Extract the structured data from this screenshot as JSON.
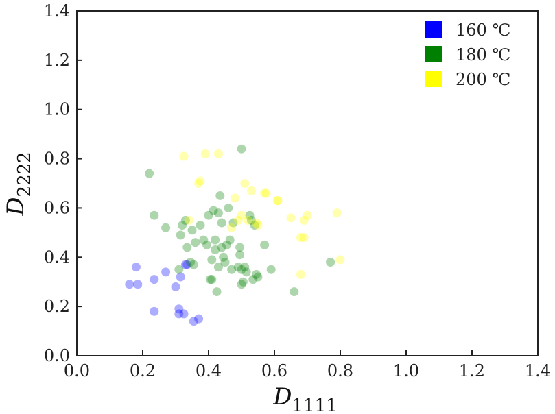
{
  "chart_data": {
    "type": "scatter",
    "xlabel": {
      "main": "D",
      "sub": "1111"
    },
    "ylabel": {
      "main": "D",
      "sub": "2222"
    },
    "xlim": [
      0.0,
      1.4
    ],
    "ylim": [
      0.0,
      1.4
    ],
    "xticks": [
      "0.0",
      "0.2",
      "0.4",
      "0.6",
      "0.8",
      "1.0",
      "1.2",
      "1.4"
    ],
    "yticks": [
      "0.0",
      "0.2",
      "0.4",
      "0.6",
      "0.8",
      "1.0",
      "1.2",
      "1.4"
    ],
    "grid": false,
    "legend_position": "top-right",
    "series": [
      {
        "name": "160 ℃",
        "color": "#0000ff",
        "points": [
          [
            0.16,
            0.29
          ],
          [
            0.18,
            0.36
          ],
          [
            0.185,
            0.29
          ],
          [
            0.235,
            0.31
          ],
          [
            0.27,
            0.34
          ],
          [
            0.3,
            0.28
          ],
          [
            0.315,
            0.32
          ],
          [
            0.33,
            0.37
          ],
          [
            0.235,
            0.18
          ],
          [
            0.31,
            0.19
          ],
          [
            0.31,
            0.17
          ],
          [
            0.325,
            0.17
          ],
          [
            0.355,
            0.14
          ],
          [
            0.37,
            0.15
          ],
          [
            0.335,
            0.37
          ]
        ]
      },
      {
        "name": "180 ℃",
        "color": "#008000",
        "points": [
          [
            0.22,
            0.74
          ],
          [
            0.235,
            0.57
          ],
          [
            0.27,
            0.52
          ],
          [
            0.31,
            0.35
          ],
          [
            0.315,
            0.49
          ],
          [
            0.32,
            0.53
          ],
          [
            0.33,
            0.55
          ],
          [
            0.335,
            0.44
          ],
          [
            0.345,
            0.38
          ],
          [
            0.35,
            0.51
          ],
          [
            0.355,
            0.37
          ],
          [
            0.36,
            0.46
          ],
          [
            0.375,
            0.53
          ],
          [
            0.385,
            0.47
          ],
          [
            0.395,
            0.45
          ],
          [
            0.4,
            0.57
          ],
          [
            0.405,
            0.31
          ],
          [
            0.41,
            0.31
          ],
          [
            0.41,
            0.39
          ],
          [
            0.415,
            0.59
          ],
          [
            0.42,
            0.47
          ],
          [
            0.42,
            0.43
          ],
          [
            0.425,
            0.26
          ],
          [
            0.43,
            0.36
          ],
          [
            0.43,
            0.58
          ],
          [
            0.435,
            0.65
          ],
          [
            0.44,
            0.44
          ],
          [
            0.44,
            0.54
          ],
          [
            0.445,
            0.4
          ],
          [
            0.45,
            0.38
          ],
          [
            0.455,
            0.45
          ],
          [
            0.46,
            0.6
          ],
          [
            0.465,
            0.47
          ],
          [
            0.47,
            0.35
          ],
          [
            0.475,
            0.54
          ],
          [
            0.49,
            0.36
          ],
          [
            0.495,
            0.44
          ],
          [
            0.495,
            0.41
          ],
          [
            0.5,
            0.35
          ],
          [
            0.5,
            0.29
          ],
          [
            0.505,
            0.3
          ],
          [
            0.51,
            0.36
          ],
          [
            0.515,
            0.34
          ],
          [
            0.525,
            0.57
          ],
          [
            0.53,
            0.55
          ],
          [
            0.535,
            0.31
          ],
          [
            0.54,
            0.53
          ],
          [
            0.55,
            0.32
          ],
          [
            0.545,
            0.33
          ],
          [
            0.57,
            0.45
          ],
          [
            0.59,
            0.35
          ],
          [
            0.66,
            0.26
          ],
          [
            0.77,
            0.38
          ],
          [
            0.5,
            0.84
          ]
        ]
      },
      {
        "name": "200 ℃",
        "color": "#ffff00",
        "points": [
          [
            0.325,
            0.81
          ],
          [
            0.39,
            0.82
          ],
          [
            0.43,
            0.82
          ],
          [
            0.37,
            0.7
          ],
          [
            0.375,
            0.71
          ],
          [
            0.34,
            0.55
          ],
          [
            0.48,
            0.64
          ],
          [
            0.51,
            0.7
          ],
          [
            0.52,
            0.55
          ],
          [
            0.53,
            0.67
          ],
          [
            0.57,
            0.66
          ],
          [
            0.575,
            0.66
          ],
          [
            0.61,
            0.63
          ],
          [
            0.65,
            0.56
          ],
          [
            0.68,
            0.48
          ],
          [
            0.69,
            0.48
          ],
          [
            0.69,
            0.55
          ],
          [
            0.7,
            0.57
          ],
          [
            0.79,
            0.58
          ],
          [
            0.8,
            0.39
          ],
          [
            0.68,
            0.33
          ],
          [
            0.49,
            0.55
          ],
          [
            0.5,
            0.57
          ],
          [
            0.545,
            0.54
          ],
          [
            0.55,
            0.53
          ],
          [
            0.47,
            0.52
          ],
          [
            0.61,
            0.63
          ]
        ]
      }
    ]
  }
}
